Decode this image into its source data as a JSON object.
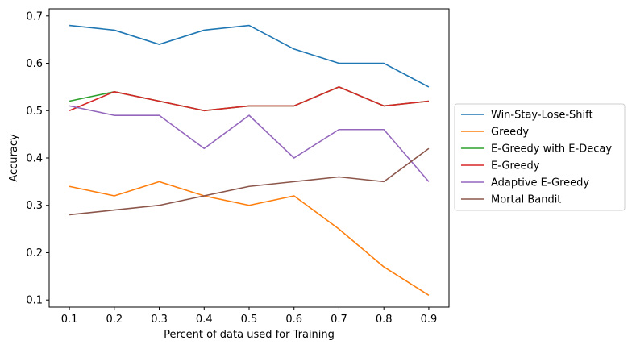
{
  "chart_data": {
    "type": "line",
    "xlabel": "Percent of data used for Training",
    "ylabel": "Accuracy",
    "x": [
      0.1,
      0.2,
      0.3,
      0.4,
      0.5,
      0.6,
      0.7,
      0.8,
      0.9
    ],
    "xlim": [
      0.055,
      0.945
    ],
    "ylim": [
      0.085,
      0.715
    ],
    "x_ticks": [
      "0.1",
      "0.2",
      "0.3",
      "0.4",
      "0.5",
      "0.6",
      "0.7",
      "0.8",
      "0.9"
    ],
    "y_ticks": [
      "0.1",
      "0.2",
      "0.3",
      "0.4",
      "0.5",
      "0.6",
      "0.7"
    ],
    "grid": false,
    "legend_position": "right, outside plot",
    "series": [
      {
        "name": "Win-Stay-Lose-Shift",
        "color": "#1f77b4",
        "values": [
          0.68,
          0.67,
          0.64,
          0.67,
          0.68,
          0.63,
          0.6,
          0.6,
          0.55
        ]
      },
      {
        "name": "Greedy",
        "color": "#ff7f0e",
        "values": [
          0.34,
          0.32,
          0.35,
          0.32,
          0.3,
          0.32,
          0.25,
          0.17,
          0.11
        ]
      },
      {
        "name": "E-Greedy with E-Decay",
        "color": "#2ca02c",
        "values": [
          0.52,
          0.54,
          0.52,
          0.5,
          0.51,
          0.51,
          0.55,
          0.51,
          0.52
        ]
      },
      {
        "name": "E-Greedy",
        "color": "#d62728",
        "values": [
          0.5,
          0.54,
          0.52,
          0.5,
          0.51,
          0.51,
          0.55,
          0.51,
          0.52
        ]
      },
      {
        "name": "Adaptive E-Greedy",
        "color": "#9467bd",
        "values": [
          0.51,
          0.49,
          0.49,
          0.42,
          0.49,
          0.4,
          0.46,
          0.46,
          0.35
        ]
      },
      {
        "name": "Mortal Bandit",
        "color": "#8c564b",
        "values": [
          0.28,
          0.29,
          0.3,
          0.32,
          0.34,
          0.35,
          0.36,
          0.35,
          0.42
        ]
      }
    ]
  }
}
